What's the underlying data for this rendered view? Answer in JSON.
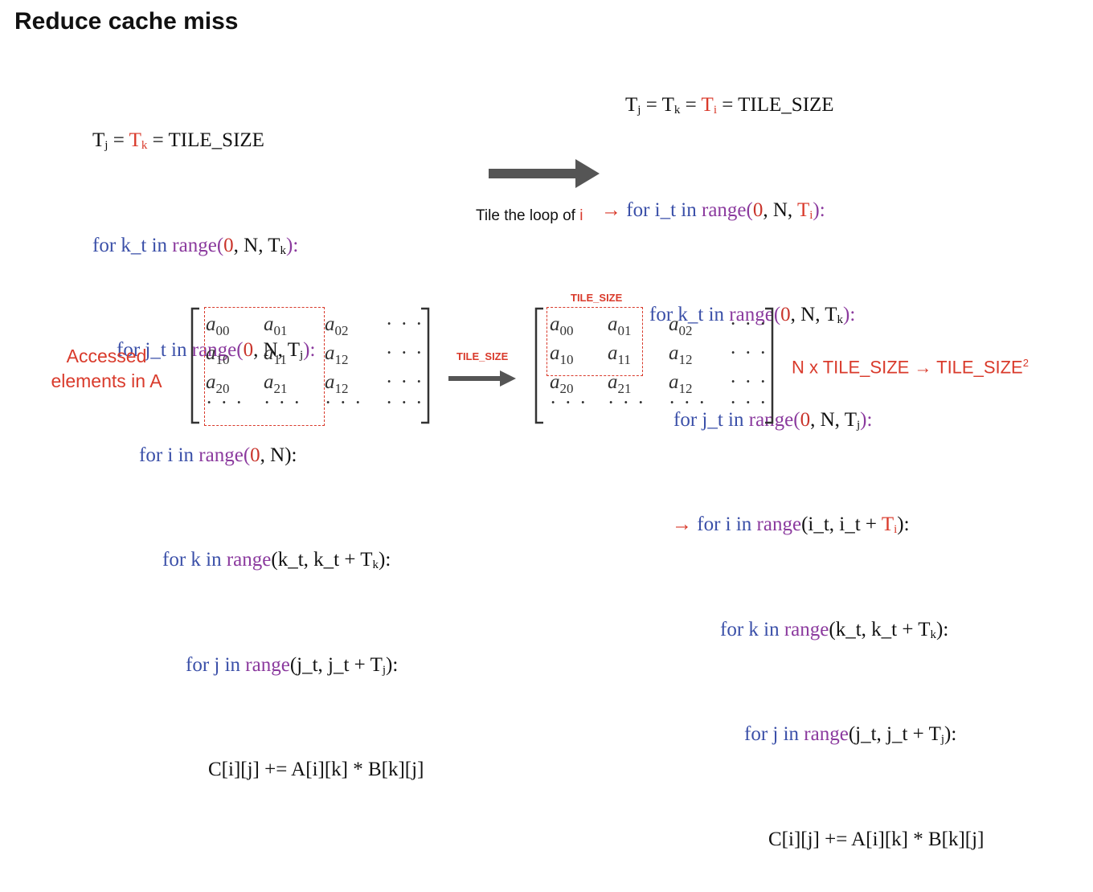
{
  "title": "Reduce cache miss",
  "left_code": {
    "line1": {
      "tj": "T",
      "tj_sub": "j",
      "eq1": " = ",
      "tk": "T",
      "tk_sub": "k",
      "rest": " = TILE_SIZE"
    },
    "line2": {
      "for": "for k_t in ",
      "range": "range",
      "open": "(",
      "zero": "0",
      "mid": ", N, ",
      "t": "T",
      "t_sub": "k",
      "close": "):"
    },
    "line3": {
      "for": "for j_t in ",
      "range": "range",
      "open": "(",
      "zero": "0",
      "mid": ", N, ",
      "t": "T",
      "t_sub": "j",
      "close": "):"
    },
    "line4": {
      "for": "for i in ",
      "range": "range",
      "open": "(",
      "zero": "0",
      "mid": ", N):"
    },
    "line5": {
      "for": "for k in ",
      "range": "range",
      "args": "(k_t, k_t + ",
      "t": "T",
      "t_sub": "k",
      "close": "):"
    },
    "line6": {
      "for": "for j in ",
      "range": "range",
      "args": "(j_t, j_t + ",
      "t": "T",
      "t_sub": "j",
      "close": "):"
    },
    "line7": "C[i][j] += A[i][k] * B[k][j]"
  },
  "right_code": {
    "line1": {
      "tj": "T",
      "tj_sub": "j",
      "eq": " = ",
      "tk": "T",
      "tk_sub": "k",
      "eq2": " = ",
      "ti": "T",
      "ti_sub": "i",
      "rest": " = TILE_SIZE"
    },
    "line2": {
      "arrow": "→ ",
      "for": "for i_t in ",
      "range": "range",
      "open": "(",
      "zero": "0",
      "mid": ", N, ",
      "t": "T",
      "t_sub": "i",
      "close": "):"
    },
    "line3": {
      "for": "for k_t in ",
      "range": "range",
      "open": "(",
      "zero": "0",
      "mid": ", N, ",
      "t": "T",
      "t_sub": "k",
      "close": "):"
    },
    "line4": {
      "for": "for j_t in ",
      "range": "range",
      "open": "(",
      "zero": "0",
      "mid": ", N, ",
      "t": "T",
      "t_sub": "j",
      "close": "):"
    },
    "line5": {
      "arrow": "→ ",
      "for": "for i in ",
      "range": "range",
      "args": "(i_t, i_t + ",
      "t": "T",
      "t_sub": "i",
      "close": "):"
    },
    "line6": {
      "for": "for k in ",
      "range": "range",
      "args": "(k_t, k_t + ",
      "t": "T",
      "t_sub": "k",
      "close": "):"
    },
    "line7": {
      "for": "for j in ",
      "range": "range",
      "args": "(j_t, j_t + ",
      "t": "T",
      "t_sub": "j",
      "close": "):"
    },
    "line8": "C[i][j] += A[i][k] * B[k][j]"
  },
  "transform_caption": {
    "text": "Tile the loop of ",
    "var": "i"
  },
  "accessed_label": {
    "line1": "Accessed",
    "line2": "elements in A"
  },
  "matrix_arrow_label": "TILE_SIZE",
  "tile_size_top_label": "TILE_SIZE",
  "result_label": {
    "text": "N x TILE_SIZE → TILE_SIZE",
    "sup": "2"
  },
  "matrix": {
    "row0": [
      "a",
      "00",
      "a",
      "01",
      "a",
      "02",
      "· · ·"
    ],
    "row1": [
      "a",
      "10",
      "a",
      "11",
      "a",
      "12",
      "· · ·"
    ],
    "row2": [
      "a",
      "20",
      "a",
      "21",
      "a",
      "12",
      "· · ·"
    ],
    "row3": [
      "· · ·",
      "· · ·",
      "· · ·",
      "· · ·"
    ]
  },
  "colors": {
    "keyword": "#3a4fa8",
    "function": "#8b3a9e",
    "highlight": "#d93a2b",
    "arrow": "#555555"
  }
}
